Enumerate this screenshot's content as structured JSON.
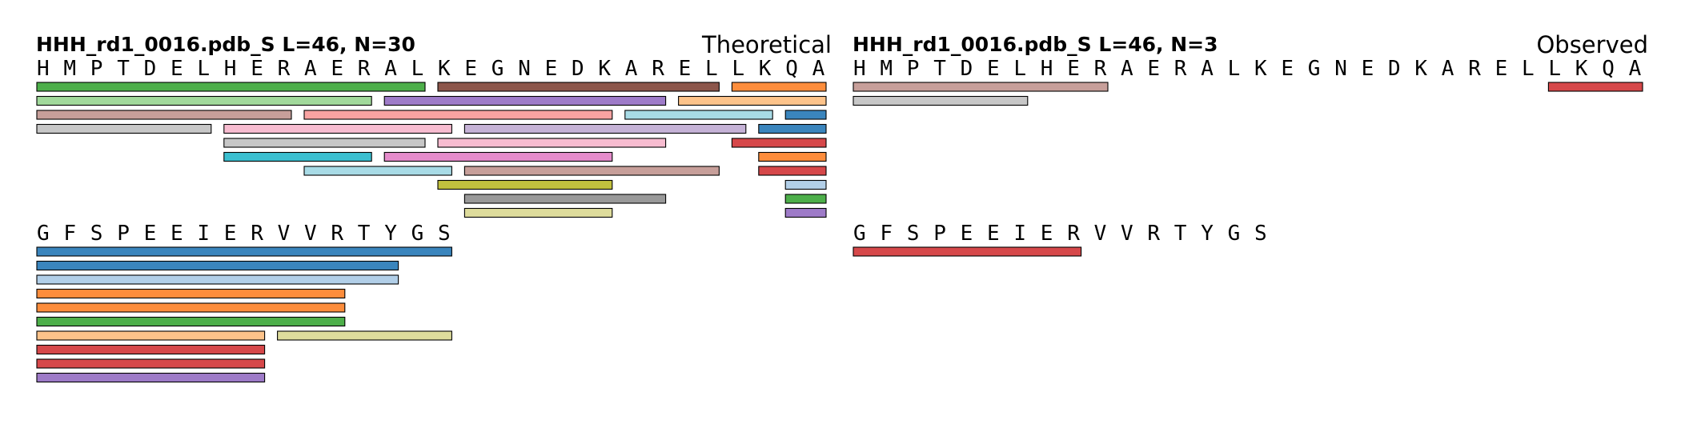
{
  "chart_data": [
    {
      "type": "peptide-coverage",
      "title": "HHH_rd1_0016.pdb_S  L=46, N=30",
      "label": "Theoretical",
      "sequence": "HMPTDELHERAERALKEGNEDKARELLKQAGFSPEEIERVVRTYGS",
      "line_breaks": [
        "HMPTDELHERAERALKEGNEDKARELLKQA",
        "GFSPEEIERVVRTYGS"
      ],
      "peptides": [
        {
          "start": 1,
          "end": 15,
          "track": 0,
          "color": "#4daf4a"
        },
        {
          "start": 16,
          "end": 26,
          "track": 0,
          "color": "#8c564b"
        },
        {
          "start": 27,
          "end": 30,
          "track": 0,
          "color": "#fd8d3c"
        },
        {
          "start": 1,
          "end": 13,
          "track": 1,
          "color": "#a1d99b"
        },
        {
          "start": 14,
          "end": 24,
          "track": 1,
          "color": "#9e7bc8"
        },
        {
          "start": 25,
          "end": 30,
          "track": 1,
          "color": "#fdc38a"
        },
        {
          "start": 1,
          "end": 10,
          "track": 2,
          "color": "#c79f9a"
        },
        {
          "start": 11,
          "end": 22,
          "track": 2,
          "color": "#f9a3a2"
        },
        {
          "start": 23,
          "end": 28,
          "track": 2,
          "color": "#a8dbe6"
        },
        {
          "start": 29,
          "end": 30,
          "track": 2,
          "color": "#3a85bd"
        },
        {
          "start": 1,
          "end": 7,
          "track": 3,
          "color": "#c7c7c7"
        },
        {
          "start": 8,
          "end": 16,
          "track": 3,
          "color": "#f7bcd0"
        },
        {
          "start": 17,
          "end": 27,
          "track": 3,
          "color": "#c5b2d6"
        },
        {
          "start": 28,
          "end": 30,
          "track": 3,
          "color": "#3a85bd"
        },
        {
          "start": 8,
          "end": 15,
          "track": 4,
          "color": "#c7c7c7"
        },
        {
          "start": 16,
          "end": 24,
          "track": 4,
          "color": "#f7bcd0"
        },
        {
          "start": 27,
          "end": 30,
          "track": 4,
          "color": "#d6484a"
        },
        {
          "start": 8,
          "end": 13,
          "track": 5,
          "color": "#3bbfd0"
        },
        {
          "start": 14,
          "end": 22,
          "track": 5,
          "color": "#e58ccb"
        },
        {
          "start": 28,
          "end": 30,
          "track": 5,
          "color": "#fd8d3c"
        },
        {
          "start": 11,
          "end": 16,
          "track": 6,
          "color": "#a8dbe6"
        },
        {
          "start": 17,
          "end": 26,
          "track": 6,
          "color": "#c79f9a"
        },
        {
          "start": 28,
          "end": 30,
          "track": 6,
          "color": "#d6484a"
        },
        {
          "start": 16,
          "end": 22,
          "track": 7,
          "color": "#c2c13e"
        },
        {
          "start": 29,
          "end": 30,
          "track": 7,
          "color": "#b2cfe8"
        },
        {
          "start": 17,
          "end": 24,
          "track": 8,
          "color": "#999999"
        },
        {
          "start": 29,
          "end": 30,
          "track": 8,
          "color": "#4daf4a"
        },
        {
          "start": 17,
          "end": 22,
          "track": 9,
          "color": "#dedc9c"
        },
        {
          "start": 29,
          "end": 30,
          "track": 9,
          "color": "#9e7bc8"
        },
        {
          "start": 31,
          "end": 46,
          "track": 0,
          "color": "#3a85bd"
        },
        {
          "start": 31,
          "end": 44,
          "track": 1,
          "color": "#3a85bd"
        },
        {
          "start": 31,
          "end": 44,
          "track": 2,
          "color": "#b2cfe8"
        },
        {
          "start": 31,
          "end": 42,
          "track": 3,
          "color": "#fd8d3c"
        },
        {
          "start": 31,
          "end": 42,
          "track": 4,
          "color": "#fd8d3c"
        },
        {
          "start": 31,
          "end": 42,
          "track": 5,
          "color": "#4daf4a"
        },
        {
          "start": 31,
          "end": 39,
          "track": 6,
          "color": "#fdc38a"
        },
        {
          "start": 40,
          "end": 46,
          "track": 6,
          "color": "#dedc9c"
        },
        {
          "start": 31,
          "end": 39,
          "track": 7,
          "color": "#d6484a"
        },
        {
          "start": 31,
          "end": 39,
          "track": 8,
          "color": "#d6484a"
        },
        {
          "start": 31,
          "end": 39,
          "track": 9,
          "color": "#9e7bc8"
        }
      ]
    },
    {
      "type": "peptide-coverage",
      "title": "HHH_rd1_0016.pdb_S  L=46, N=3",
      "label": "Observed",
      "sequence": "HMPTDELHERAERALKEGNEDKARELLKQAGFSPEEIERVVRTYGS",
      "line_breaks": [
        "HMPTDELHERAERALKEGNEDKARELLKQA",
        "GFSPEEIERVVRTYGS"
      ],
      "peptides": [
        {
          "start": 1,
          "end": 10,
          "track": 0,
          "color": "#c79f9a"
        },
        {
          "start": 27,
          "end": 30,
          "track": 0,
          "color": "#d6484a"
        },
        {
          "start": 1,
          "end": 7,
          "track": 1,
          "color": "#c7c7c7"
        },
        {
          "start": 31,
          "end": 39,
          "track": 0,
          "color": "#d6484a"
        }
      ]
    }
  ]
}
